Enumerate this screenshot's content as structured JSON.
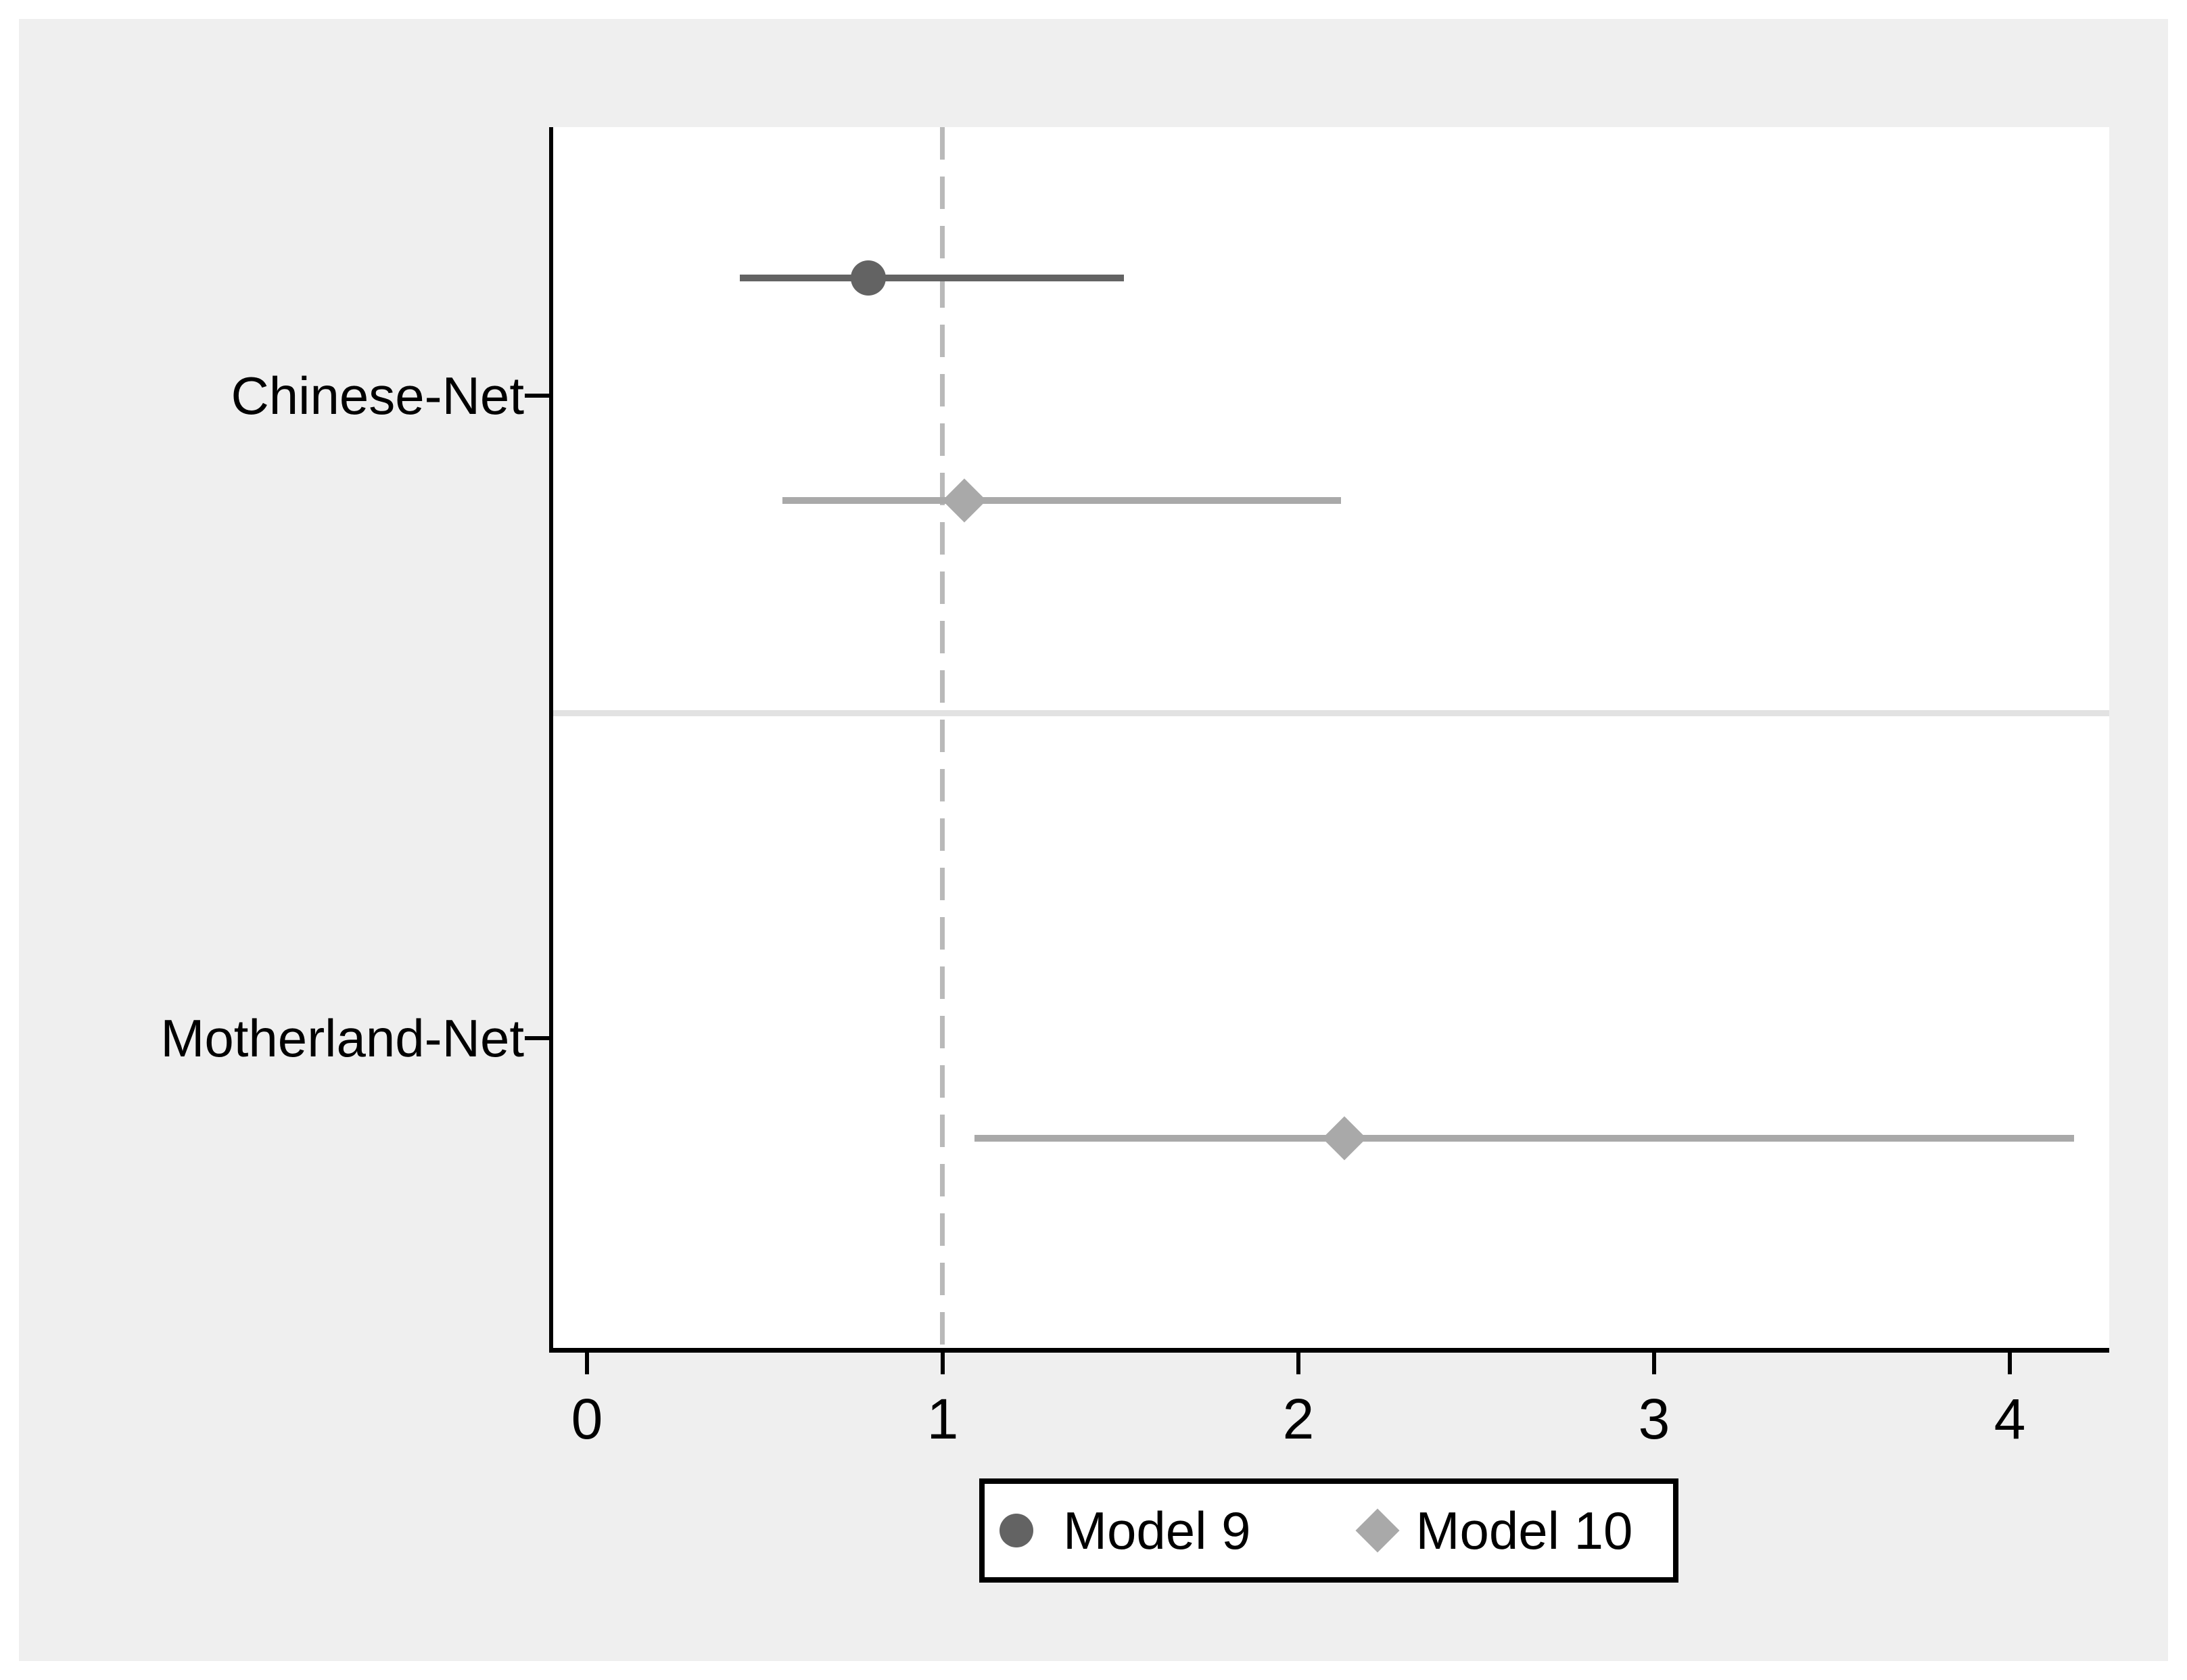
{
  "chart_data": {
    "type": "forest",
    "title": "",
    "categories": [
      "Chinese-Net",
      "Motherland-Net"
    ],
    "series": [
      {
        "name": "Model 9",
        "marker": "circle",
        "color": "#636363",
        "points": [
          {
            "category": "Chinese-Net",
            "estimate": 0.79,
            "ci_low": 0.43,
            "ci_high": 1.51
          },
          {
            "category": "Motherland-Net",
            "estimate": null,
            "ci_low": null,
            "ci_high": null
          }
        ]
      },
      {
        "name": "Model 10",
        "marker": "diamond",
        "color": "#a9a9a9",
        "points": [
          {
            "category": "Chinese-Net",
            "estimate": 1.06,
            "ci_low": 0.55,
            "ci_high": 2.12
          },
          {
            "category": "Motherland-Net",
            "estimate": 2.13,
            "ci_low": 1.09,
            "ci_high": 4.18
          }
        ]
      }
    ],
    "x_axis": {
      "tick_labels": [
        "0",
        "1",
        "2",
        "3",
        "4"
      ],
      "tick_values": [
        0,
        1,
        2,
        3,
        4
      ],
      "range": [
        -0.09,
        4.28
      ]
    },
    "reference_line": {
      "x": 1,
      "style": "dashed",
      "color": "#b9b9b9"
    },
    "legend": {
      "position": "bottom",
      "entries": [
        "Model 9",
        "Model 10"
      ]
    },
    "grid": false,
    "colors": {
      "figure_background": "#efefef",
      "plot_background": "#ffffff",
      "axis": "#000000",
      "model9": "#636363",
      "model10": "#a9a9a9",
      "separator": "#e2e2e2"
    }
  }
}
